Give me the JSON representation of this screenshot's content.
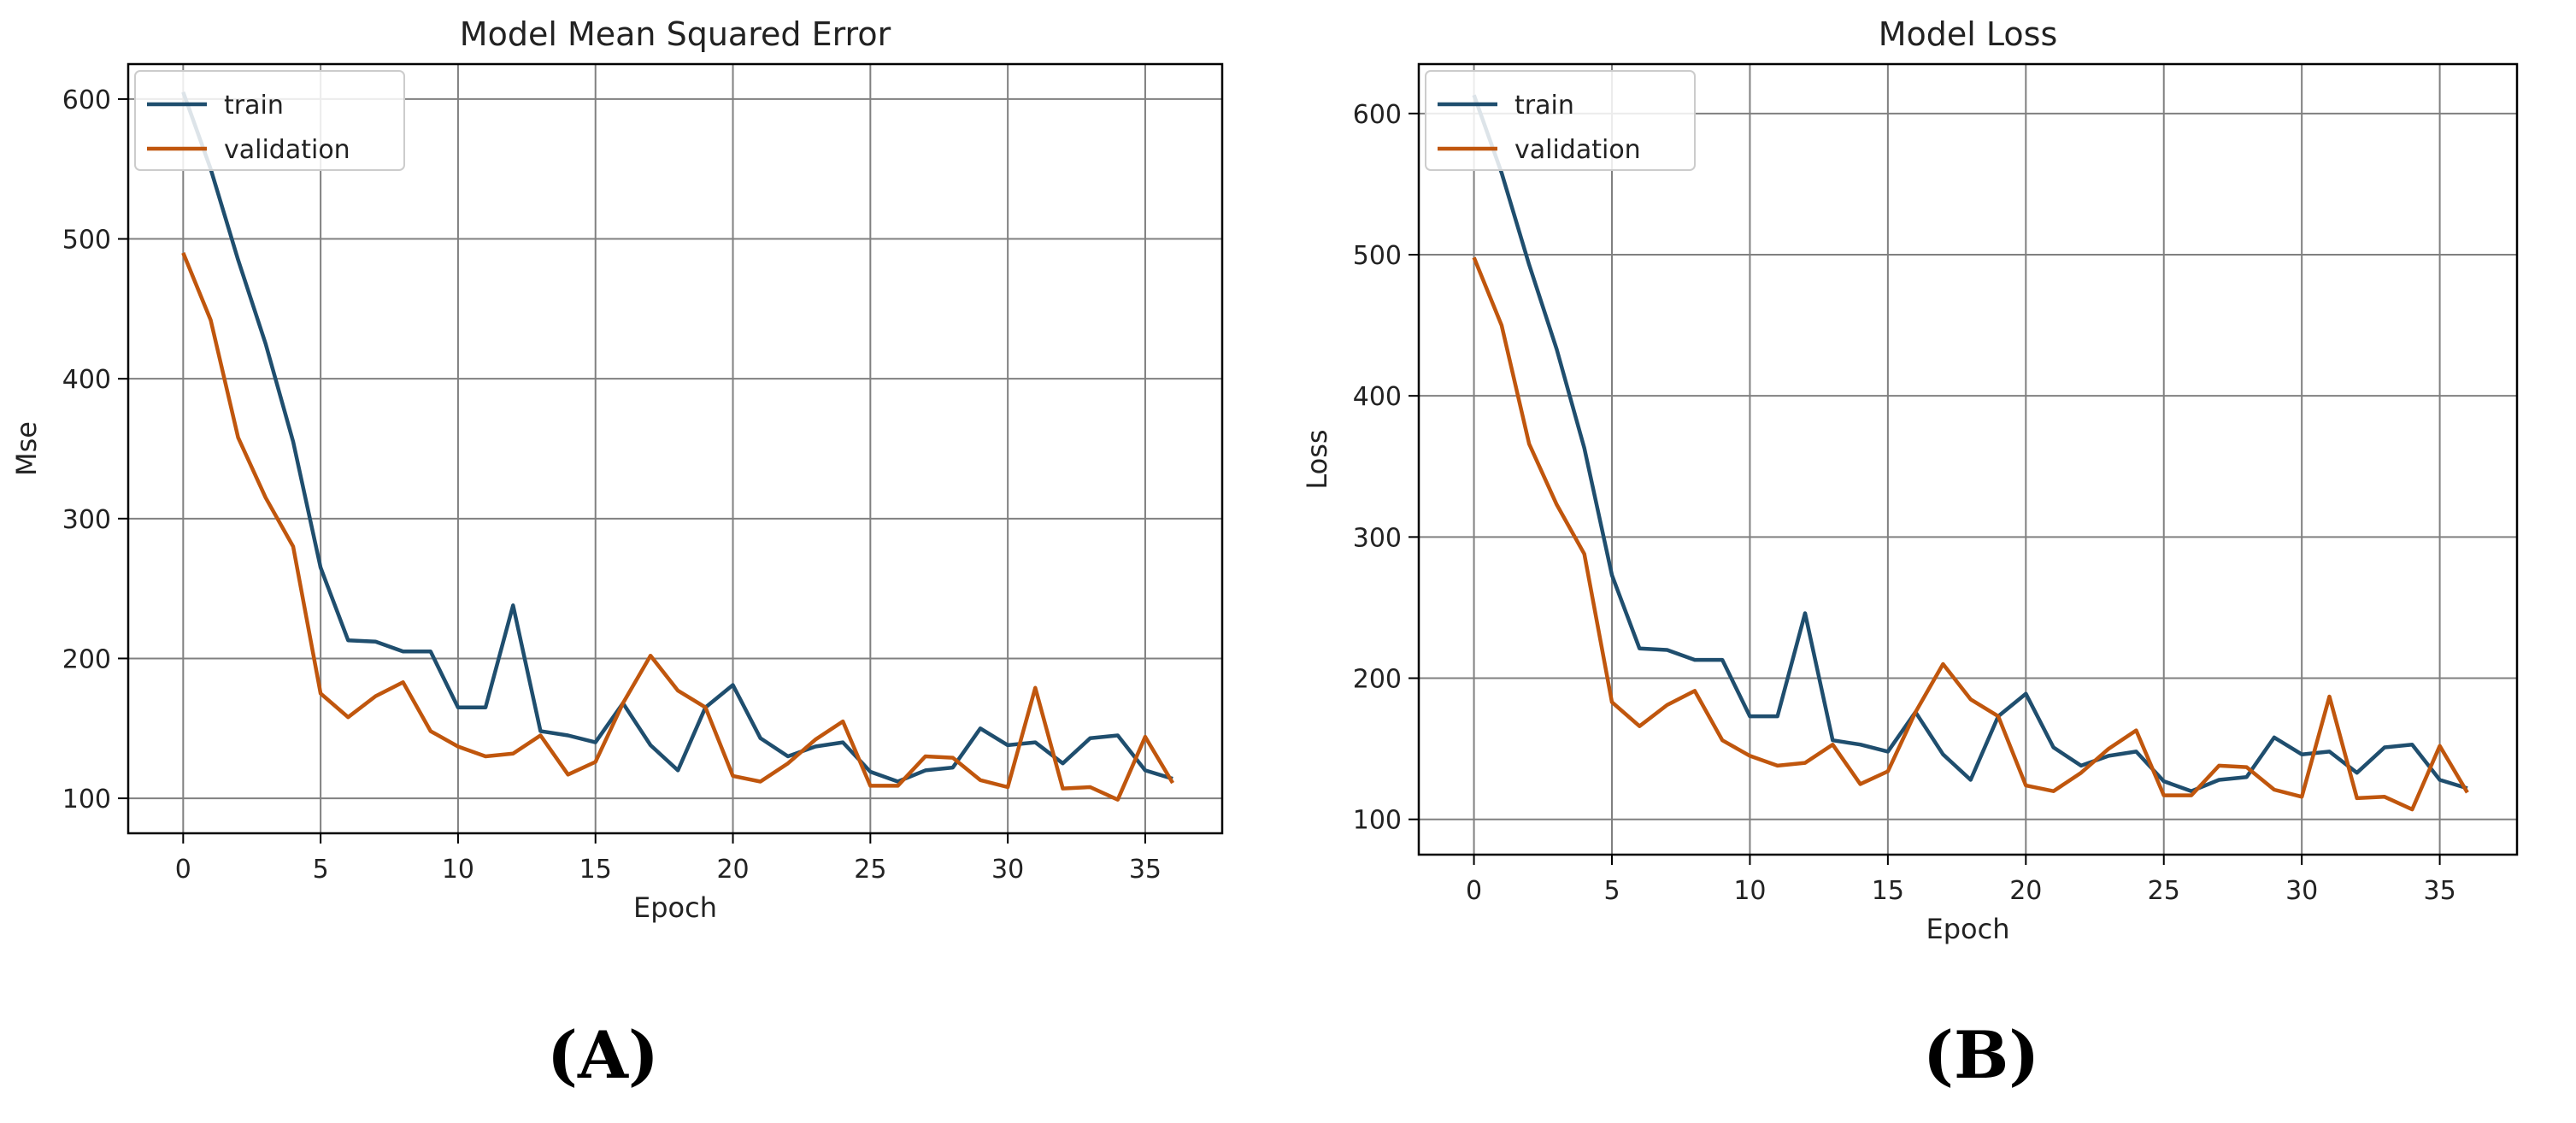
{
  "panel_labels": [
    "(A)",
    "(B)"
  ],
  "chart_data": [
    {
      "type": "line",
      "title": "Model Mean Squared Error",
      "xlabel": "Epoch",
      "ylabel": "Mse",
      "xlim": [
        -2,
        37.8
      ],
      "ylim": [
        75,
        625
      ],
      "xticks": [
        0,
        5,
        10,
        15,
        20,
        25,
        30,
        35
      ],
      "yticks": [
        100,
        200,
        300,
        400,
        500,
        600
      ],
      "grid": true,
      "legend": "top-left",
      "series": [
        {
          "name": "train",
          "color": "#1f4e6e",
          "x": [
            0,
            1,
            2,
            3,
            4,
            5,
            6,
            7,
            8,
            9,
            10,
            11,
            12,
            13,
            14,
            15,
            16,
            17,
            18,
            19,
            20,
            21,
            22,
            23,
            24,
            25,
            26,
            27,
            28,
            29,
            30,
            31,
            32,
            33,
            34,
            35,
            36
          ],
          "values": [
            605,
            550,
            485,
            425,
            355,
            265,
            213,
            212,
            205,
            205,
            165,
            165,
            238,
            148,
            145,
            140,
            168,
            138,
            120,
            165,
            181,
            143,
            130,
            137,
            140,
            119,
            112,
            120,
            122,
            150,
            138,
            140,
            125,
            143,
            145,
            120,
            114
          ]
        },
        {
          "name": "validation",
          "color": "#c0560d",
          "x": [
            0,
            1,
            2,
            3,
            4,
            5,
            6,
            7,
            8,
            9,
            10,
            11,
            12,
            13,
            14,
            15,
            16,
            17,
            18,
            19,
            20,
            21,
            22,
            23,
            24,
            25,
            26,
            27,
            28,
            29,
            30,
            31,
            32,
            33,
            34,
            35,
            36
          ],
          "values": [
            490,
            442,
            358,
            315,
            280,
            175,
            158,
            173,
            183,
            148,
            137,
            130,
            132,
            145,
            117,
            126,
            168,
            202,
            177,
            165,
            116,
            112,
            125,
            142,
            155,
            109,
            109,
            130,
            129,
            113,
            108,
            179,
            107,
            108,
            99,
            144,
            111
          ]
        }
      ]
    },
    {
      "type": "line",
      "title": "Model Loss",
      "xlabel": "Epoch",
      "ylabel": "Loss",
      "xlim": [
        -2,
        37.8
      ],
      "ylim": [
        75,
        635
      ],
      "xticks": [
        0,
        5,
        10,
        15,
        20,
        25,
        30,
        35
      ],
      "yticks": [
        100,
        200,
        300,
        400,
        500,
        600
      ],
      "grid": true,
      "legend": "top-left",
      "series": [
        {
          "name": "train",
          "color": "#1f4e6e",
          "x": [
            0,
            1,
            2,
            3,
            4,
            5,
            6,
            7,
            8,
            9,
            10,
            11,
            12,
            13,
            14,
            15,
            16,
            17,
            18,
            19,
            20,
            21,
            22,
            23,
            24,
            25,
            26,
            27,
            28,
            29,
            30,
            31,
            32,
            33,
            34,
            35,
            36
          ],
          "values": [
            613,
            558,
            493,
            433,
            363,
            273,
            221,
            220,
            213,
            213,
            173,
            173,
            246,
            156,
            153,
            148,
            176,
            146,
            128,
            173,
            189,
            151,
            138,
            145,
            148,
            127,
            120,
            128,
            130,
            158,
            146,
            148,
            133,
            151,
            153,
            128,
            122
          ]
        },
        {
          "name": "validation",
          "color": "#c0560d",
          "x": [
            0,
            1,
            2,
            3,
            4,
            5,
            6,
            7,
            8,
            9,
            10,
            11,
            12,
            13,
            14,
            15,
            16,
            17,
            18,
            19,
            20,
            21,
            22,
            23,
            24,
            25,
            26,
            27,
            28,
            29,
            30,
            31,
            32,
            33,
            34,
            35,
            36
          ],
          "values": [
            498,
            450,
            366,
            323,
            288,
            183,
            166,
            181,
            191,
            156,
            145,
            138,
            140,
            153,
            125,
            134,
            176,
            210,
            185,
            173,
            124,
            120,
            133,
            150,
            163,
            117,
            117,
            138,
            137,
            121,
            116,
            187,
            115,
            116,
            107,
            152,
            119
          ]
        }
      ]
    }
  ]
}
